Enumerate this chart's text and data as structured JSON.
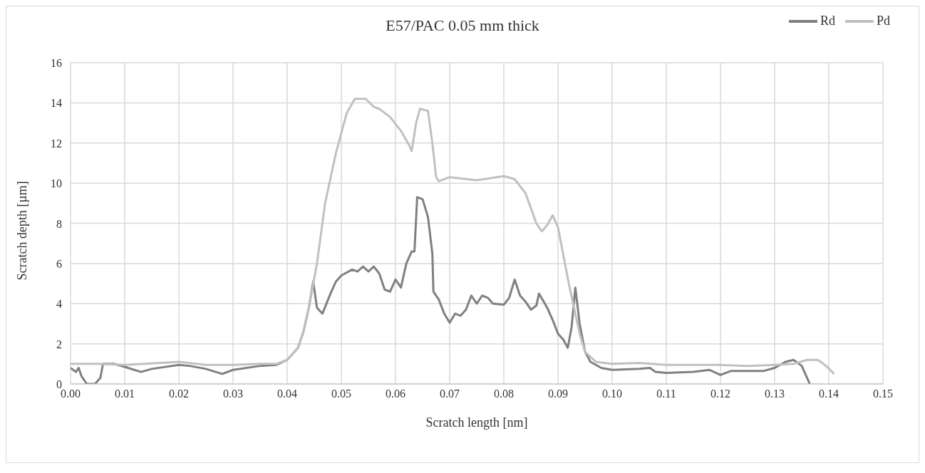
{
  "chart_data": {
    "type": "line",
    "title": "E57/PAC 0.05 mm thick",
    "xlabel": "Scratch length [nm]",
    "ylabel": "Scratch depth [µm]",
    "xlim": [
      0,
      0.15
    ],
    "xticks": [
      {
        "value": 0,
        "label": "0.00"
      },
      {
        "value": 0.01,
        "label": "0.01"
      },
      {
        "value": 0.02,
        "label": "0.02"
      },
      {
        "value": 0.03,
        "label": "0.03"
      },
      {
        "value": 0.04,
        "label": "0.04"
      },
      {
        "value": 0.05,
        "label": "0.05"
      },
      {
        "value": 0.06,
        "label": "0.06"
      },
      {
        "value": 0.07,
        "label": "0.07"
      },
      {
        "value": 0.08,
        "label": "0.08"
      },
      {
        "value": 0.09,
        "label": "0.09"
      },
      {
        "value": 0.1,
        "label": "0.10"
      },
      {
        "value": 0.11,
        "label": "0.11"
      },
      {
        "value": 0.12,
        "label": "0.12"
      },
      {
        "value": 0.13,
        "label": "0.13"
      },
      {
        "value": 0.14,
        "label": "0.14"
      },
      {
        "value": 0.15,
        "label": "0.15"
      }
    ],
    "ylim": [
      0,
      16
    ],
    "yticks": [
      0,
      2,
      4,
      6,
      8,
      10,
      12,
      14,
      16
    ],
    "grid": true,
    "legend": "top right",
    "marker": "none",
    "line_style": "solid",
    "series": [
      {
        "name": "Rd",
        "color": "#808080",
        "x": [
          0,
          0.001,
          0.0015,
          0.002,
          0.003,
          0.0045,
          0.0055,
          0.006,
          0.008,
          0.01,
          0.013,
          0.015,
          0.02,
          0.022,
          0.025,
          0.028,
          0.03,
          0.035,
          0.038,
          0.04,
          0.042,
          0.043,
          0.044,
          0.0448,
          0.0455,
          0.0465,
          0.048,
          0.049,
          0.05,
          0.052,
          0.053,
          0.054,
          0.055,
          0.056,
          0.057,
          0.058,
          0.059,
          0.06,
          0.061,
          0.062,
          0.063,
          0.0635,
          0.064,
          0.065,
          0.066,
          0.0668,
          0.067,
          0.068,
          0.069,
          0.07,
          0.071,
          0.072,
          0.073,
          0.074,
          0.075,
          0.076,
          0.077,
          0.078,
          0.08,
          0.081,
          0.082,
          0.083,
          0.084,
          0.085,
          0.086,
          0.0865,
          0.088,
          0.089,
          0.09,
          0.091,
          0.0918,
          0.0925,
          0.0932,
          0.094,
          0.095,
          0.096,
          0.098,
          0.1,
          0.105,
          0.107,
          0.108,
          0.11,
          0.115,
          0.118,
          0.12,
          0.122,
          0.125,
          0.128,
          0.13,
          0.132,
          0.1335,
          0.135,
          0.1365
        ],
        "values": [
          0.8,
          0.6,
          0.8,
          0.4,
          0,
          0,
          0.3,
          1.0,
          1.0,
          0.85,
          0.6,
          0.75,
          0.95,
          0.9,
          0.75,
          0.5,
          0.7,
          0.9,
          0.95,
          1.2,
          1.8,
          2.6,
          3.8,
          5.1,
          3.8,
          3.5,
          4.5,
          5.1,
          5.4,
          5.7,
          5.6,
          5.85,
          5.6,
          5.85,
          5.5,
          4.7,
          4.6,
          5.2,
          4.8,
          6.0,
          6.6,
          6.6,
          9.3,
          9.2,
          8.3,
          6.5,
          4.6,
          4.2,
          3.5,
          3.05,
          3.5,
          3.4,
          3.7,
          4.4,
          4.0,
          4.4,
          4.3,
          4.0,
          3.95,
          4.3,
          5.2,
          4.4,
          4.1,
          3.7,
          3.9,
          4.5,
          3.8,
          3.2,
          2.5,
          2.2,
          1.8,
          2.8,
          4.8,
          3.0,
          1.6,
          1.1,
          0.8,
          0.7,
          0.75,
          0.8,
          0.6,
          0.55,
          0.6,
          0.7,
          0.45,
          0.65,
          0.65,
          0.65,
          0.8,
          1.1,
          1.2,
          0.9,
          0
        ]
      },
      {
        "name": "Pd",
        "color": "#c0c0c0",
        "x": [
          0,
          0.005,
          0.01,
          0.02,
          0.025,
          0.03,
          0.035,
          0.038,
          0.04,
          0.042,
          0.043,
          0.044,
          0.0455,
          0.047,
          0.049,
          0.051,
          0.0525,
          0.0545,
          0.056,
          0.057,
          0.059,
          0.061,
          0.0625,
          0.063,
          0.0638,
          0.0645,
          0.066,
          0.0668,
          0.0675,
          0.068,
          0.07,
          0.075,
          0.08,
          0.082,
          0.084,
          0.086,
          0.087,
          0.088,
          0.089,
          0.09,
          0.092,
          0.094,
          0.095,
          0.097,
          0.1,
          0.105,
          0.11,
          0.12,
          0.125,
          0.13,
          0.1335,
          0.136,
          0.138,
          0.1395,
          0.141
        ],
        "values": [
          1.0,
          1.0,
          0.95,
          1.1,
          0.95,
          0.95,
          1.0,
          1.0,
          1.2,
          1.8,
          2.6,
          3.8,
          6,
          9,
          11.5,
          13.5,
          14.2,
          14.2,
          13.8,
          13.7,
          13.3,
          12.6,
          11.9,
          11.6,
          13,
          13.7,
          13.6,
          12,
          10.3,
          10.1,
          10.3,
          10.15,
          10.35,
          10.2,
          9.5,
          8.0,
          7.6,
          7.9,
          8.4,
          7.8,
          5.0,
          2.5,
          1.6,
          1.1,
          1.0,
          1.05,
          0.95,
          0.95,
          0.9,
          0.95,
          1.0,
          1.2,
          1.2,
          0.9,
          0.5
        ]
      }
    ]
  }
}
